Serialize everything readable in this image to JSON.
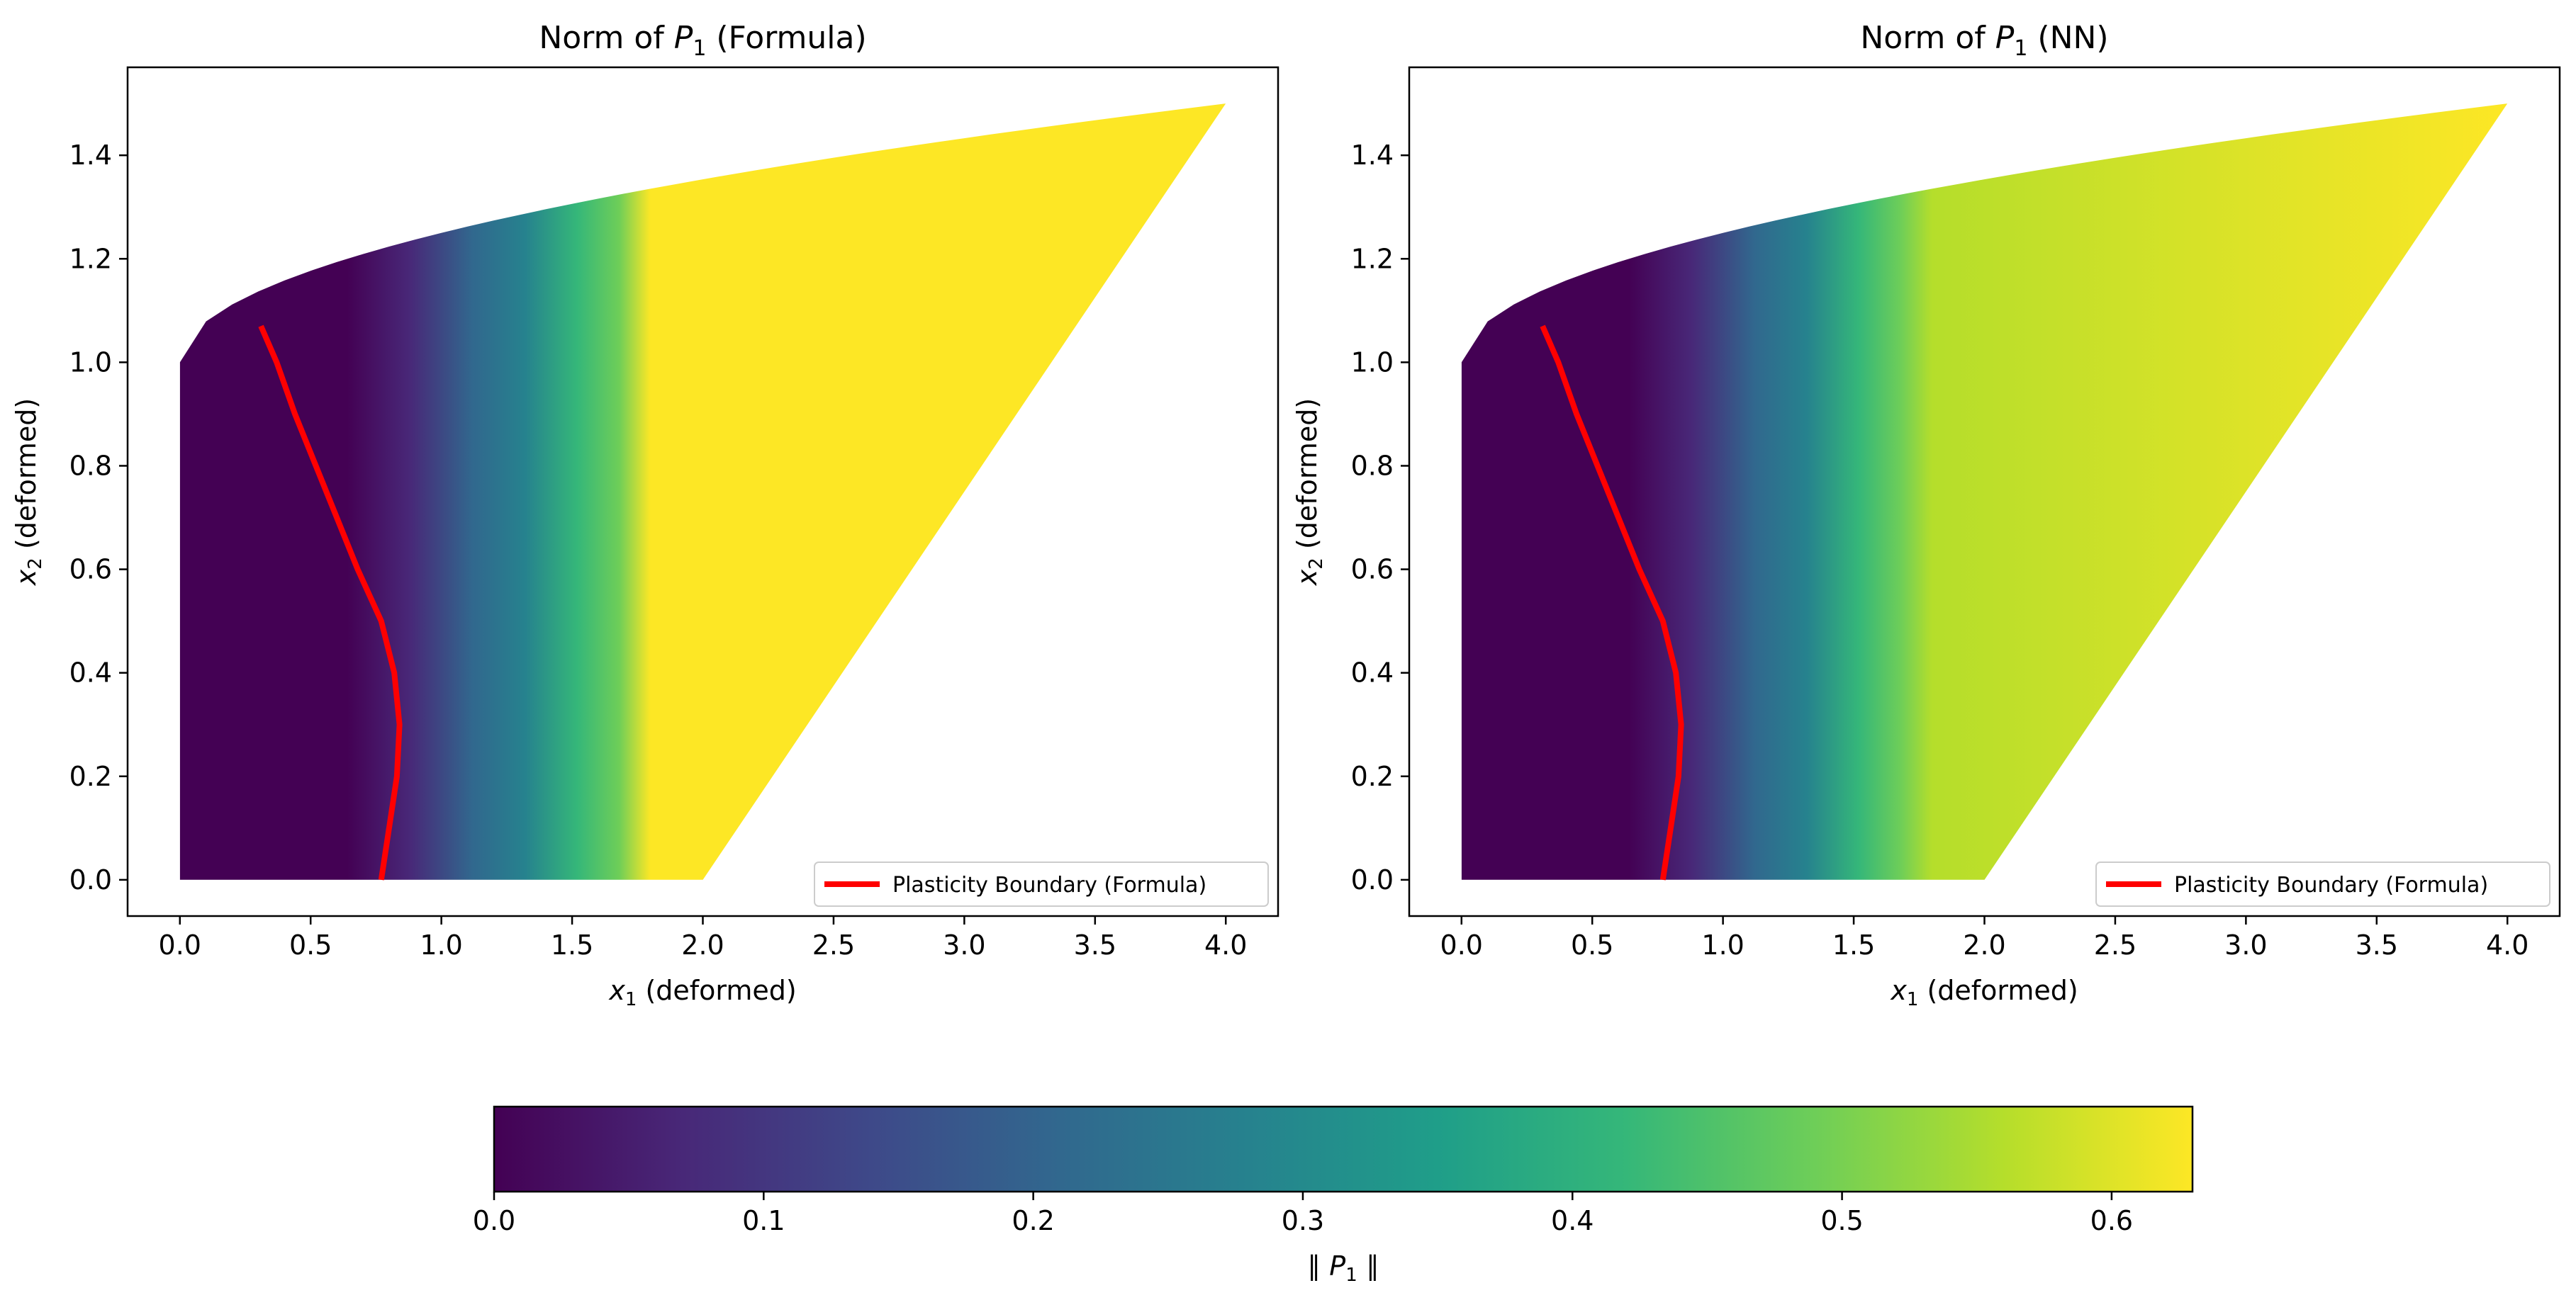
{
  "chart_data": [
    {
      "type": "heatmap",
      "title": "Norm of P_1 (Formula)",
      "title_parts": {
        "prefix": "Norm of ",
        "symbol": "P",
        "subscript": "1",
        "suffix": " (Formula)"
      },
      "xlabel": {
        "symbol": "x",
        "subscript": "1",
        "suffix": " (deformed)"
      },
      "ylabel": {
        "symbol": "x",
        "subscript": "2",
        "suffix": " (deformed)"
      },
      "xlim": [
        -0.2,
        4.2
      ],
      "ylim": [
        -0.07,
        1.57
      ],
      "xticks": [
        0.0,
        0.5,
        1.0,
        1.5,
        2.0,
        2.5,
        3.0,
        3.5,
        4.0
      ],
      "xtick_labels": [
        "0.0",
        "0.5",
        "1.0",
        "1.5",
        "2.0",
        "2.5",
        "3.0",
        "3.5",
        "4.0"
      ],
      "yticks": [
        0.0,
        0.2,
        0.4,
        0.6,
        0.8,
        1.0,
        1.2,
        1.4
      ],
      "ytick_labels": [
        "0.0",
        "0.2",
        "0.4",
        "0.6",
        "0.8",
        "1.0",
        "1.2",
        "1.4"
      ],
      "grid": false,
      "domain_outline": [
        [
          0.0,
          0.0
        ],
        [
          2.0,
          0.0
        ],
        [
          4.0,
          1.5
        ],
        [
          0.0,
          1.0
        ]
      ],
      "field": {
        "description_source": "color",
        "max_value": 0.63,
        "saturation_front_x": 1.75,
        "min_x_region": [
          0.0,
          0.7
        ]
      },
      "boundary_series": {
        "name": "Plasticity Boundary (Formula)",
        "color": "#ff0000",
        "points": [
          [
            0.77,
            0.0
          ],
          [
            0.8,
            0.1
          ],
          [
            0.83,
            0.2
          ],
          [
            0.84,
            0.3
          ],
          [
            0.82,
            0.4
          ],
          [
            0.77,
            0.5
          ],
          [
            0.68,
            0.6
          ],
          [
            0.6,
            0.7
          ],
          [
            0.52,
            0.8
          ],
          [
            0.44,
            0.9
          ],
          [
            0.37,
            1.0
          ],
          [
            0.31,
            1.07
          ]
        ]
      },
      "legend_location": "lower-right",
      "legend_entries": [
        "Plasticity Boundary (Formula)"
      ]
    },
    {
      "type": "heatmap",
      "title": "Norm of P_1 (NN)",
      "title_parts": {
        "prefix": "Norm of ",
        "symbol": "P",
        "subscript": "1",
        "suffix": " (NN)"
      },
      "xlabel": {
        "symbol": "x",
        "subscript": "1",
        "suffix": " (deformed)"
      },
      "ylabel": {
        "symbol": "x",
        "subscript": "2",
        "suffix": " (deformed)"
      },
      "xlim": [
        -0.2,
        4.2
      ],
      "ylim": [
        -0.07,
        1.57
      ],
      "xticks": [
        0.0,
        0.5,
        1.0,
        1.5,
        2.0,
        2.5,
        3.0,
        3.5,
        4.0
      ],
      "xtick_labels": [
        "0.0",
        "0.5",
        "1.0",
        "1.5",
        "2.0",
        "2.5",
        "3.0",
        "3.5",
        "4.0"
      ],
      "yticks": [
        0.0,
        0.2,
        0.4,
        0.6,
        0.8,
        1.0,
        1.2,
        1.4
      ],
      "ytick_labels": [
        "0.0",
        "0.2",
        "0.4",
        "0.6",
        "0.8",
        "1.0",
        "1.2",
        "1.4"
      ],
      "grid": false,
      "domain_outline": [
        [
          0.0,
          0.0
        ],
        [
          2.0,
          0.0
        ],
        [
          4.0,
          1.5
        ],
        [
          0.0,
          1.0
        ]
      ],
      "field": {
        "description_source": "color",
        "max_value": 0.6,
        "saturation_front_x": 1.75,
        "min_x_region": [
          0.0,
          0.7
        ]
      },
      "boundary_series": {
        "name": "Plasticity Boundary (Formula)",
        "color": "#ff0000",
        "points": [
          [
            0.77,
            0.0
          ],
          [
            0.8,
            0.1
          ],
          [
            0.83,
            0.2
          ],
          [
            0.84,
            0.3
          ],
          [
            0.82,
            0.4
          ],
          [
            0.77,
            0.5
          ],
          [
            0.68,
            0.6
          ],
          [
            0.6,
            0.7
          ],
          [
            0.52,
            0.8
          ],
          [
            0.44,
            0.9
          ],
          [
            0.37,
            1.0
          ],
          [
            0.31,
            1.07
          ]
        ]
      },
      "legend_location": "lower-right",
      "legend_entries": [
        "Plasticity Boundary (Formula)"
      ]
    }
  ],
  "colorbar": {
    "label": "‖ P₁ ‖",
    "label_parts": {
      "open": "∥ ",
      "symbol": "P",
      "subscript": "1",
      "close": " ∥"
    },
    "colormap": "viridis",
    "range": [
      0.0,
      0.63
    ],
    "ticks": [
      0.0,
      0.1,
      0.2,
      0.3,
      0.4,
      0.5,
      0.6
    ],
    "tick_labels": [
      "0.0",
      "0.1",
      "0.2",
      "0.3",
      "0.4",
      "0.5",
      "0.6"
    ],
    "colors": [
      "#440154",
      "#482878",
      "#3e4989",
      "#31688e",
      "#26828e",
      "#1f9e89",
      "#35b779",
      "#6ece58",
      "#b5de2b",
      "#fde725"
    ]
  }
}
